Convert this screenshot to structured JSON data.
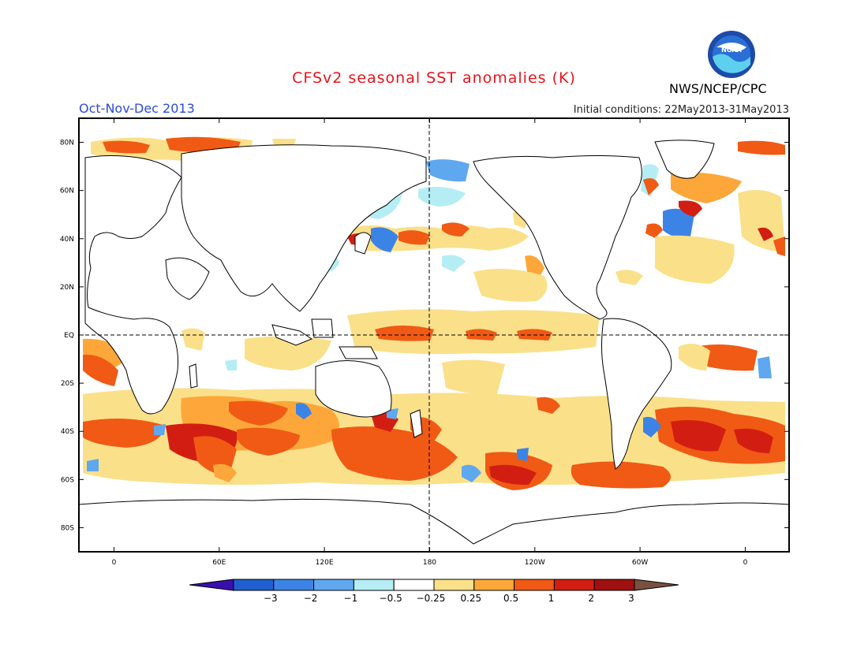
{
  "header": {
    "title": "CFSv2 seasonal SST anomalies (K)",
    "season": "Oct-Nov-Dec 2013",
    "initial_conditions": "Initial conditions: 22May2013-31May2013",
    "agency": "NWS/NCEP/CPC",
    "logo_text": "NOAA"
  },
  "map": {
    "lat_labels": [
      "80N",
      "60N",
      "40N",
      "20N",
      "EQ",
      "20S",
      "40S",
      "60S",
      "80S"
    ],
    "lat_values": [
      80,
      60,
      40,
      20,
      0,
      -20,
      -40,
      -60,
      -80
    ],
    "lon_labels": [
      "0",
      "60E",
      "120E",
      "180",
      "120W",
      "60W",
      "0"
    ],
    "lon_values": [
      0,
      60,
      120,
      180,
      240,
      300,
      360
    ],
    "lon_range": [
      -20,
      385
    ],
    "lat_range": [
      -90,
      90
    ],
    "reference_lines": [
      "EQ",
      "180"
    ]
  },
  "colorbar": {
    "labels": [
      "-3",
      "-2",
      "-1",
      "-0.5",
      "-0.25",
      "0.25",
      "0.5",
      "1",
      "2",
      "3"
    ],
    "colors": [
      "#3a0fb0",
      "#1f5fd0",
      "#3c83e6",
      "#5fa8f0",
      "#b4eef4",
      "#ffffff",
      "#fbe08a",
      "#fda73a",
      "#f05a14",
      "#d21e12",
      "#a01010",
      "#7a5040"
    ]
  },
  "anomalies": {
    "positive_strong_color": "#d21e12",
    "positive_mid_color": "#f05a14",
    "positive_weak_color": "#fda73a",
    "positive_slight_color": "#fbe08a",
    "negative_slight_color": "#b4eef4",
    "negative_weak_color": "#5fa8f0",
    "negative_mid_color": "#3c83e6"
  }
}
